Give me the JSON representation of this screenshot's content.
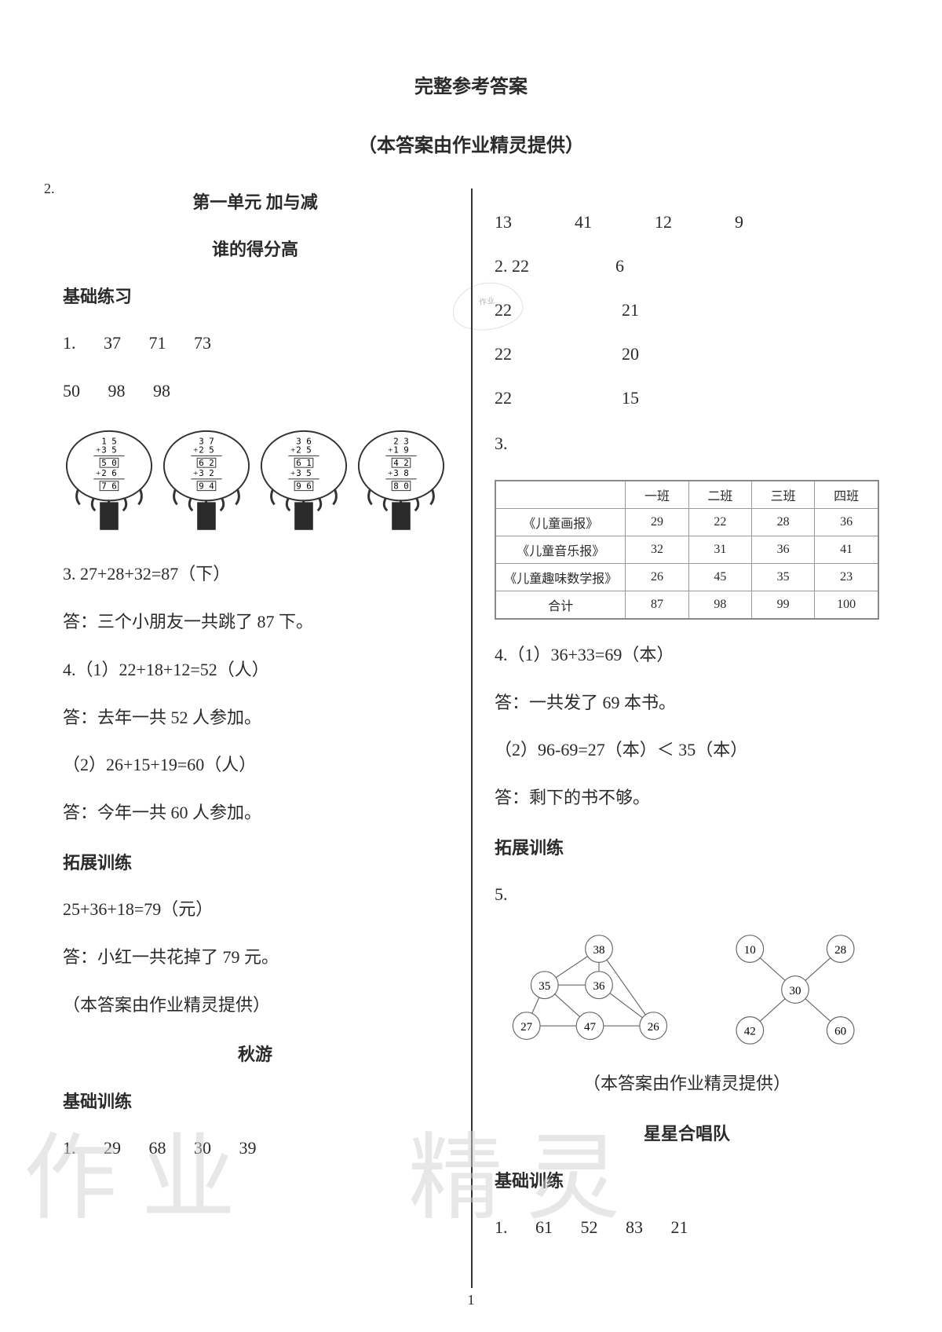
{
  "title": "完整参考答案",
  "subtitle": "（本答案由作业精灵提供）",
  "left": {
    "unit": "第一单元  加与减",
    "section1": "谁的得分高",
    "basic_heading": "基础练习",
    "q1_row1": "1. 37    71   73",
    "q1_row2": "50   98   98",
    "q2_label": "2.",
    "trees": [
      {
        "a": "1 5",
        "b": "3 5",
        "s1box": "5 0",
        "c": "2 6",
        "s2box": "7 6"
      },
      {
        "a": "3 7",
        "b": "2 5",
        "s1box": "6 2",
        "c": "3 2",
        "s2box": "9 4"
      },
      {
        "a": "3 6",
        "b": "2 5",
        "s1box": "6 1",
        "c": "3 5",
        "s2box": "9 6"
      },
      {
        "a": "2 3",
        "b": "1 9",
        "s1box": "4 2",
        "c": "3 8",
        "s2box": "8 0"
      }
    ],
    "q3": "3. 27+28+32=87（下）",
    "q3_ans": "答：三个小朋友一共跳了 87 下。",
    "q4a": "4.（1）22+18+12=52（人）",
    "q4a_ans": "答：去年一共 52 人参加。",
    "q4b": "（2）26+15+19=60（人）",
    "q4b_ans": "答：今年一共 60 人参加。",
    "ext_heading": "拓展训练",
    "ext1": "25+36+18=79（元）",
    "ext1_ans": "答：小红一共花掉了 79 元。",
    "credit": "（本答案由作业精灵提供）",
    "section2": "秋游",
    "basic_heading2": "基础训练",
    "bottom_row": "1. 29    68   30   39"
  },
  "right": {
    "top_row": [
      "13",
      "41",
      "12",
      "9"
    ],
    "q2_row1": [
      "2. 22",
      "6"
    ],
    "q2_row2": [
      "22",
      "21"
    ],
    "q2_row3": [
      "22",
      "20"
    ],
    "q2_row4": [
      "22",
      "15"
    ],
    "q3_label": "3.",
    "table": {
      "headers": [
        "",
        "一班",
        "二班",
        "三班",
        "四班"
      ],
      "rows": [
        [
          "《儿童画报》",
          "29",
          "22",
          "28",
          "36"
        ],
        [
          "《儿童音乐报》",
          "32",
          "31",
          "36",
          "41"
        ],
        [
          "《儿童趣味数学报》",
          "26",
          "45",
          "35",
          "23"
        ],
        [
          "合计",
          "87",
          "98",
          "99",
          "100"
        ]
      ]
    },
    "q4a": "4.（1）36+33=69（本）",
    "q4a_ans": "答：一共发了 69 本书。",
    "q4b": "（2）96-69=27（本）＜ 35（本）",
    "q4b_ans": "答：剩下的书不够。",
    "ext_heading": "拓展训练",
    "q5_label": "5.",
    "graph1_nodes": [
      "38",
      "35",
      "36",
      "27",
      "47",
      "26"
    ],
    "graph2_nodes": [
      "10",
      "28",
      "30",
      "42",
      "60"
    ],
    "credit": "（本答案由作业精灵提供）",
    "section3": "星星合唱队",
    "basic_heading": "基础训练",
    "bottom_row": "1. 61    52   83   21"
  },
  "watermark1": "作 业",
  "watermark2": "精 灵",
  "seal_text": "作业",
  "page_num": "1"
}
